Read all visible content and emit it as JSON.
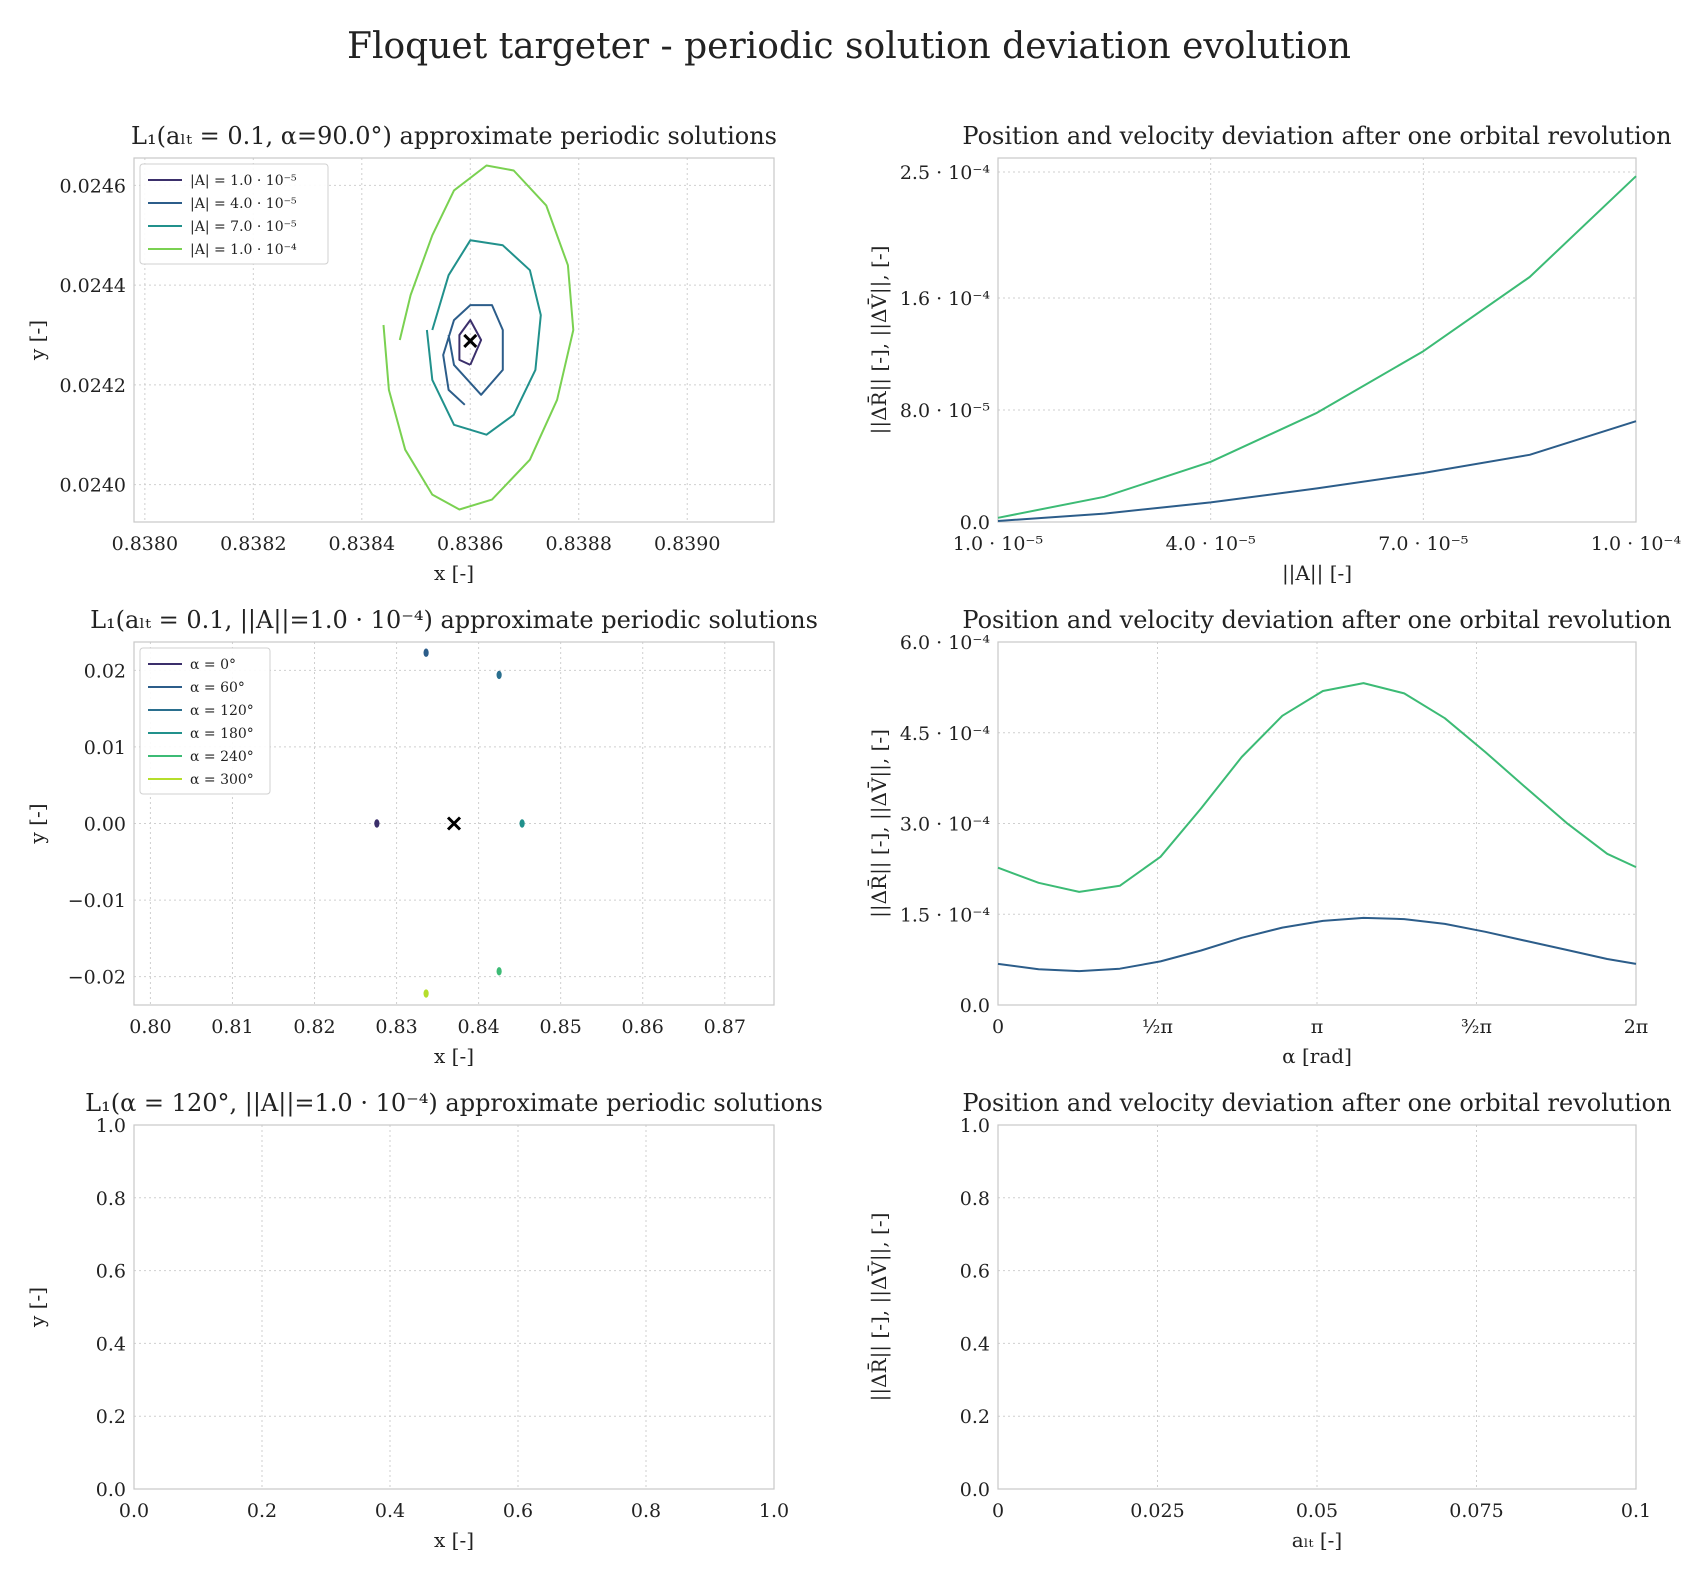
{
  "figure": {
    "suptitle": "Floquet targeter - periodic solution deviation evolution"
  },
  "colors": {
    "viridis_dark": "#3b2f6b",
    "viridis_blue": "#2c5d8a",
    "viridis_teal": "#21918c",
    "viridis_green": "#3cbb75",
    "viridis_lime": "#7ad151",
    "viridis_yellow": "#b5de2b",
    "equilibrium_marker": "#000000"
  },
  "chart_data": [
    {
      "id": "orbits_amplitude",
      "type": "line",
      "title": "L₁(aₗₜ = 0.1, α=90.0°) approximate periodic solutions",
      "xlabel": "x [-]",
      "ylabel": "y [-]",
      "xlim": [
        0.83798,
        0.83916
      ],
      "ylim": [
        0.023925,
        0.024655
      ],
      "xticks": [
        0.838,
        0.8382,
        0.8384,
        0.8386,
        0.8388,
        0.839
      ],
      "xtick_labels": [
        "0.8380",
        "0.8382",
        "0.8384",
        "0.8386",
        "0.8388",
        "0.8390"
      ],
      "yticks": [
        0.024,
        0.0242,
        0.0244,
        0.0246
      ],
      "ytick_labels": [
        "0.0240",
        "0.0242",
        "0.0244",
        "0.0246"
      ],
      "grid": true,
      "legend": "top-left",
      "equilibrium": {
        "x": 0.8386,
        "y": 0.024288
      },
      "series": [
        {
          "name": "|A| = 1.0 · 10⁻⁵",
          "color": "#3b2f6b",
          "x": [
            0.8386,
            0.83862,
            0.8386,
            0.83858,
            0.83858,
            0.8386
          ],
          "y": [
            0.02424,
            0.02429,
            0.02433,
            0.0243,
            0.02425,
            0.02424
          ]
        },
        {
          "name": "|A| = 4.0 · 10⁻⁵",
          "color": "#2c5d8a",
          "x": [
            0.83856,
            0.83857,
            0.83862,
            0.83866,
            0.83866,
            0.83864,
            0.8386,
            0.83857,
            0.83855,
            0.83856,
            0.83859
          ],
          "y": [
            0.0243,
            0.02424,
            0.02418,
            0.02423,
            0.02431,
            0.02436,
            0.02436,
            0.02433,
            0.02426,
            0.02419,
            0.02416
          ]
        },
        {
          "name": "|A| = 7.0 · 10⁻⁵",
          "color": "#21918c",
          "x": [
            0.83852,
            0.83853,
            0.83857,
            0.83863,
            0.83868,
            0.83872,
            0.83873,
            0.83871,
            0.83866,
            0.8386,
            0.83856,
            0.83853
          ],
          "y": [
            0.02431,
            0.02421,
            0.02412,
            0.0241,
            0.02414,
            0.02423,
            0.02434,
            0.02443,
            0.02448,
            0.02449,
            0.02442,
            0.02431
          ]
        },
        {
          "name": "|A| = 1.0 · 10⁻⁴",
          "color": "#7ad151",
          "x": [
            0.83844,
            0.83845,
            0.83848,
            0.83853,
            0.83858,
            0.83864,
            0.83871,
            0.83876,
            0.83879,
            0.83878,
            0.83874,
            0.83868,
            0.83863,
            0.83857,
            0.83853,
            0.83849,
            0.83847
          ],
          "y": [
            0.02432,
            0.02419,
            0.02407,
            0.02398,
            0.02395,
            0.02397,
            0.02405,
            0.02417,
            0.02431,
            0.02444,
            0.02456,
            0.02463,
            0.02464,
            0.02459,
            0.0245,
            0.02438,
            0.02429
          ]
        }
      ]
    },
    {
      "id": "deviation_amplitude",
      "type": "line",
      "title": "Position and velocity deviation after one orbital revolution",
      "xlabel": "||A|| [-]",
      "ylabel": "||ΔR̄|| [-], ||ΔV̄||, [-]",
      "xlim": [
        1e-05,
        0.0001
      ],
      "ylim": [
        0,
        0.00026
      ],
      "xticks": [
        1e-05,
        4e-05,
        7e-05,
        0.0001
      ],
      "xtick_labels": [
        "1.0 · 10⁻⁵",
        "4.0 · 10⁻⁵",
        "7.0 · 10⁻⁵",
        "1.0 · 10⁻⁴"
      ],
      "yticks": [
        0,
        8e-05,
        0.00016,
        0.00025
      ],
      "ytick_labels": [
        "0.0",
        "8.0 · 10⁻⁵",
        "1.6 · 10⁻⁴",
        "2.5 · 10⁻⁴"
      ],
      "grid": true,
      "series": [
        {
          "color": "#2c5d8a",
          "x": [
            1e-05,
            2.5e-05,
            4e-05,
            5.5e-05,
            7e-05,
            8.5e-05,
            0.0001
          ],
          "y": [
            7e-07,
            6e-06,
            1.4e-05,
            2.4e-05,
            3.5e-05,
            4.8e-05,
            7.2e-05
          ]
        },
        {
          "color": "#3cbb75",
          "x": [
            1e-05,
            2.5e-05,
            4e-05,
            5.5e-05,
            7e-05,
            8.5e-05,
            0.0001
          ],
          "y": [
            3e-06,
            1.8e-05,
            4.3e-05,
            7.8e-05,
            0.000122,
            0.000175,
            0.000247
          ]
        }
      ]
    },
    {
      "id": "orbits_alpha",
      "type": "scatter",
      "title": "L₁(aₗₜ = 0.1, ||A||=1.0 · 10⁻⁴) approximate periodic solutions",
      "xlabel": "x [-]",
      "ylabel": "y [-]",
      "xlim": [
        0.798,
        0.876
      ],
      "ylim": [
        -0.0237,
        0.0237
      ],
      "xticks": [
        0.8,
        0.81,
        0.82,
        0.83,
        0.84,
        0.85,
        0.86,
        0.87
      ],
      "xtick_labels": [
        "0.80",
        "0.81",
        "0.82",
        "0.83",
        "0.84",
        "0.85",
        "0.86",
        "0.87"
      ],
      "yticks": [
        -0.02,
        -0.01,
        0.0,
        0.01,
        0.02
      ],
      "ytick_labels": [
        "−0.02",
        "−0.01",
        "0.00",
        "0.01",
        "0.02"
      ],
      "grid": true,
      "legend": "top-left",
      "equilibrium": {
        "x": 0.837,
        "y": 0.0
      },
      "series": [
        {
          "name": "α = 0°",
          "color": "#3b2f6b",
          "x": [
            0.8276
          ],
          "y": [
            0.0
          ]
        },
        {
          "name": "α = 60°",
          "color": "#2c5d8a",
          "x": [
            0.8336
          ],
          "y": [
            0.0223
          ]
        },
        {
          "name": "α = 120°",
          "color": "#2a6f8e",
          "x": [
            0.8425
          ],
          "y": [
            0.0194
          ]
        },
        {
          "name": "α = 180°",
          "color": "#21918c",
          "x": [
            0.8453
          ],
          "y": [
            0.0
          ]
        },
        {
          "name": "α = 240°",
          "color": "#3cbb75",
          "x": [
            0.8425
          ],
          "y": [
            -0.0193
          ]
        },
        {
          "name": "α = 300°",
          "color": "#b5de2b",
          "x": [
            0.8336
          ],
          "y": [
            -0.0222
          ]
        }
      ]
    },
    {
      "id": "deviation_alpha",
      "type": "line",
      "title": "Position and velocity deviation after one orbital revolution",
      "xlabel": "α [rad]",
      "ylabel": "||ΔR̄|| [-], ||ΔV̄||, [-]",
      "xlim": [
        0,
        6.2832
      ],
      "ylim": [
        0,
        0.0006
      ],
      "xticks": [
        0,
        1.5708,
        3.1416,
        4.7124,
        6.2832
      ],
      "xtick_labels": [
        "0",
        "½π",
        "π",
        "³⁄₂π",
        "2π"
      ],
      "yticks": [
        0,
        0.00015,
        0.0003,
        0.00045,
        0.0006
      ],
      "ytick_labels": [
        "0.0",
        "1.5 · 10⁻⁴",
        "3.0 · 10⁻⁴",
        "4.5 · 10⁻⁴",
        "6.0 · 10⁻⁴"
      ],
      "grid": true,
      "series": [
        {
          "color": "#2c5d8a",
          "x": [
            0,
            0.4,
            0.8,
            1.2,
            1.6,
            2.0,
            2.4,
            2.8,
            3.2,
            3.6,
            4.0,
            4.4,
            4.8,
            5.2,
            5.6,
            6.0,
            6.2832
          ],
          "y": [
            6.8e-05,
            5.9e-05,
            5.6e-05,
            6e-05,
            7.2e-05,
            9e-05,
            0.000111,
            0.000128,
            0.000139,
            0.000144,
            0.000142,
            0.000134,
            0.000121,
            0.000106,
            9.1e-05,
            7.6e-05,
            6.8e-05
          ]
        },
        {
          "color": "#3cbb75",
          "x": [
            0,
            0.4,
            0.8,
            1.2,
            1.6,
            2.0,
            2.4,
            2.8,
            3.2,
            3.6,
            4.0,
            4.4,
            4.8,
            5.2,
            5.6,
            6.0,
            6.2832
          ],
          "y": [
            0.000227,
            0.000202,
            0.000187,
            0.000197,
            0.000245,
            0.000325,
            0.00041,
            0.000478,
            0.000519,
            0.000532,
            0.000515,
            0.000474,
            0.000418,
            0.000359,
            0.000301,
            0.00025,
            0.000228
          ]
        }
      ]
    },
    {
      "id": "orbits_acceleration",
      "type": "line",
      "title": "L₁(α = 120°, ||A||=1.0 · 10⁻⁴) approximate periodic solutions",
      "xlabel": "x [-]",
      "ylabel": "y [-]",
      "xlim": [
        0,
        1
      ],
      "ylim": [
        0,
        1
      ],
      "xticks": [
        0,
        0.2,
        0.4,
        0.6,
        0.8,
        1.0
      ],
      "xtick_labels": [
        "0.0",
        "0.2",
        "0.4",
        "0.6",
        "0.8",
        "1.0"
      ],
      "yticks": [
        0,
        0.2,
        0.4,
        0.6,
        0.8,
        1.0
      ],
      "ytick_labels": [
        "0.0",
        "0.2",
        "0.4",
        "0.6",
        "0.8",
        "1.0"
      ],
      "grid": true,
      "series": []
    },
    {
      "id": "deviation_acceleration",
      "type": "line",
      "title": "Position and velocity deviation after one orbital revolution",
      "xlabel": "aₗₜ [-]",
      "ylabel": "||ΔR̄|| [-], ||ΔV̄||, [-]",
      "xlim": [
        0,
        0.1
      ],
      "ylim": [
        0,
        1
      ],
      "xticks": [
        0,
        0.025,
        0.05,
        0.075,
        0.1
      ],
      "xtick_labels": [
        "0",
        "0.025",
        "0.05",
        "0.075",
        "0.1"
      ],
      "yticks": [
        0,
        0.2,
        0.4,
        0.6,
        0.8,
        1.0
      ],
      "ytick_labels": [
        "0.0",
        "0.2",
        "0.4",
        "0.6",
        "0.8",
        "1.0"
      ],
      "grid": true,
      "series": []
    }
  ]
}
